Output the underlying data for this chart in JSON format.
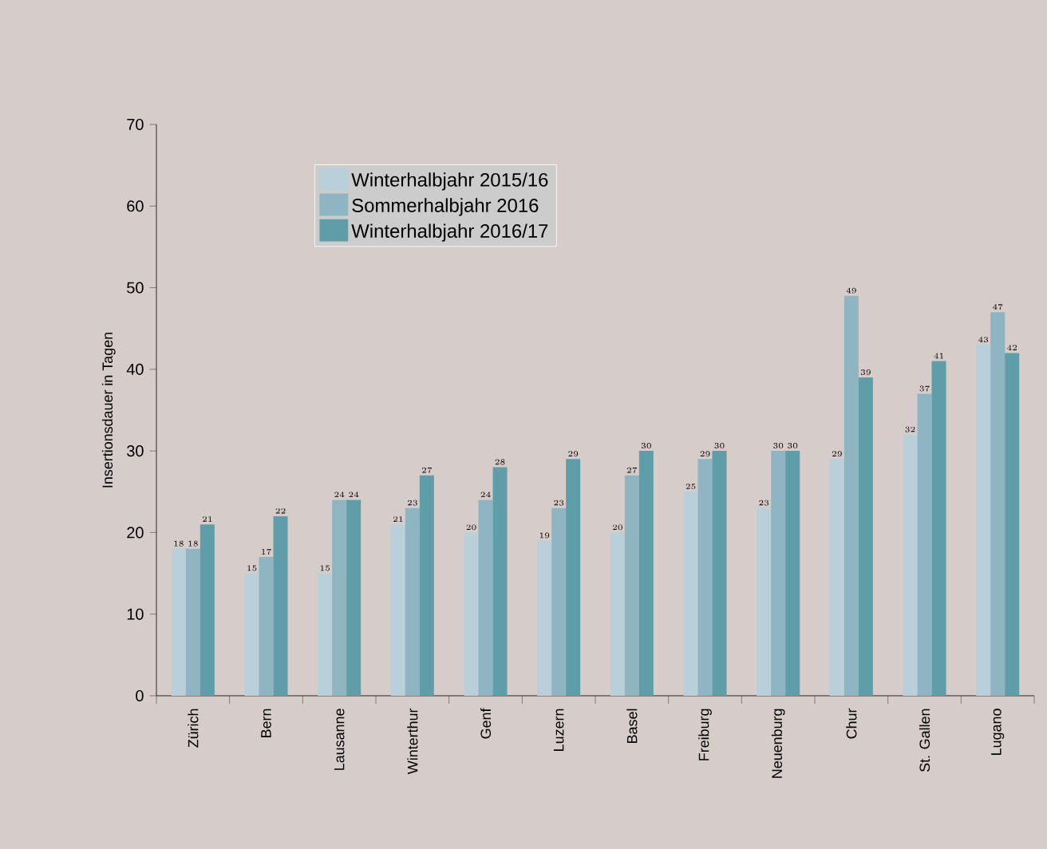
{
  "chart_data": {
    "type": "bar",
    "ylabel": "Insertionsdauer in Tagen",
    "categories": [
      "Zürich",
      "Bern",
      "Lausanne",
      "Winterthur",
      "Genf",
      "Luzern",
      "Basel",
      "Freiburg",
      "Neuenburg",
      "Chur",
      "St. Gallen",
      "Lugano"
    ],
    "series": [
      {
        "name": "Winterhalbjahr 2015/16",
        "color": "#b9cfd9",
        "values": [
          18,
          15,
          15,
          21,
          20,
          19,
          20,
          25,
          23,
          29,
          32,
          43
        ]
      },
      {
        "name": "Sommerhalbjahr 2016",
        "color": "#8fb5c3",
        "values": [
          18,
          17,
          24,
          23,
          24,
          23,
          27,
          29,
          30,
          49,
          37,
          47
        ]
      },
      {
        "name": "Winterhalbjahr 2016/17",
        "color": "#5f9ea8",
        "values": [
          21,
          22,
          24,
          27,
          28,
          29,
          30,
          30,
          30,
          39,
          41,
          42
        ]
      }
    ],
    "ylim": [
      0,
      70
    ],
    "yticks": [
      0,
      10,
      20,
      30,
      40,
      50,
      60,
      70
    ],
    "data_labels": true,
    "legend": "top left",
    "grid": false
  }
}
